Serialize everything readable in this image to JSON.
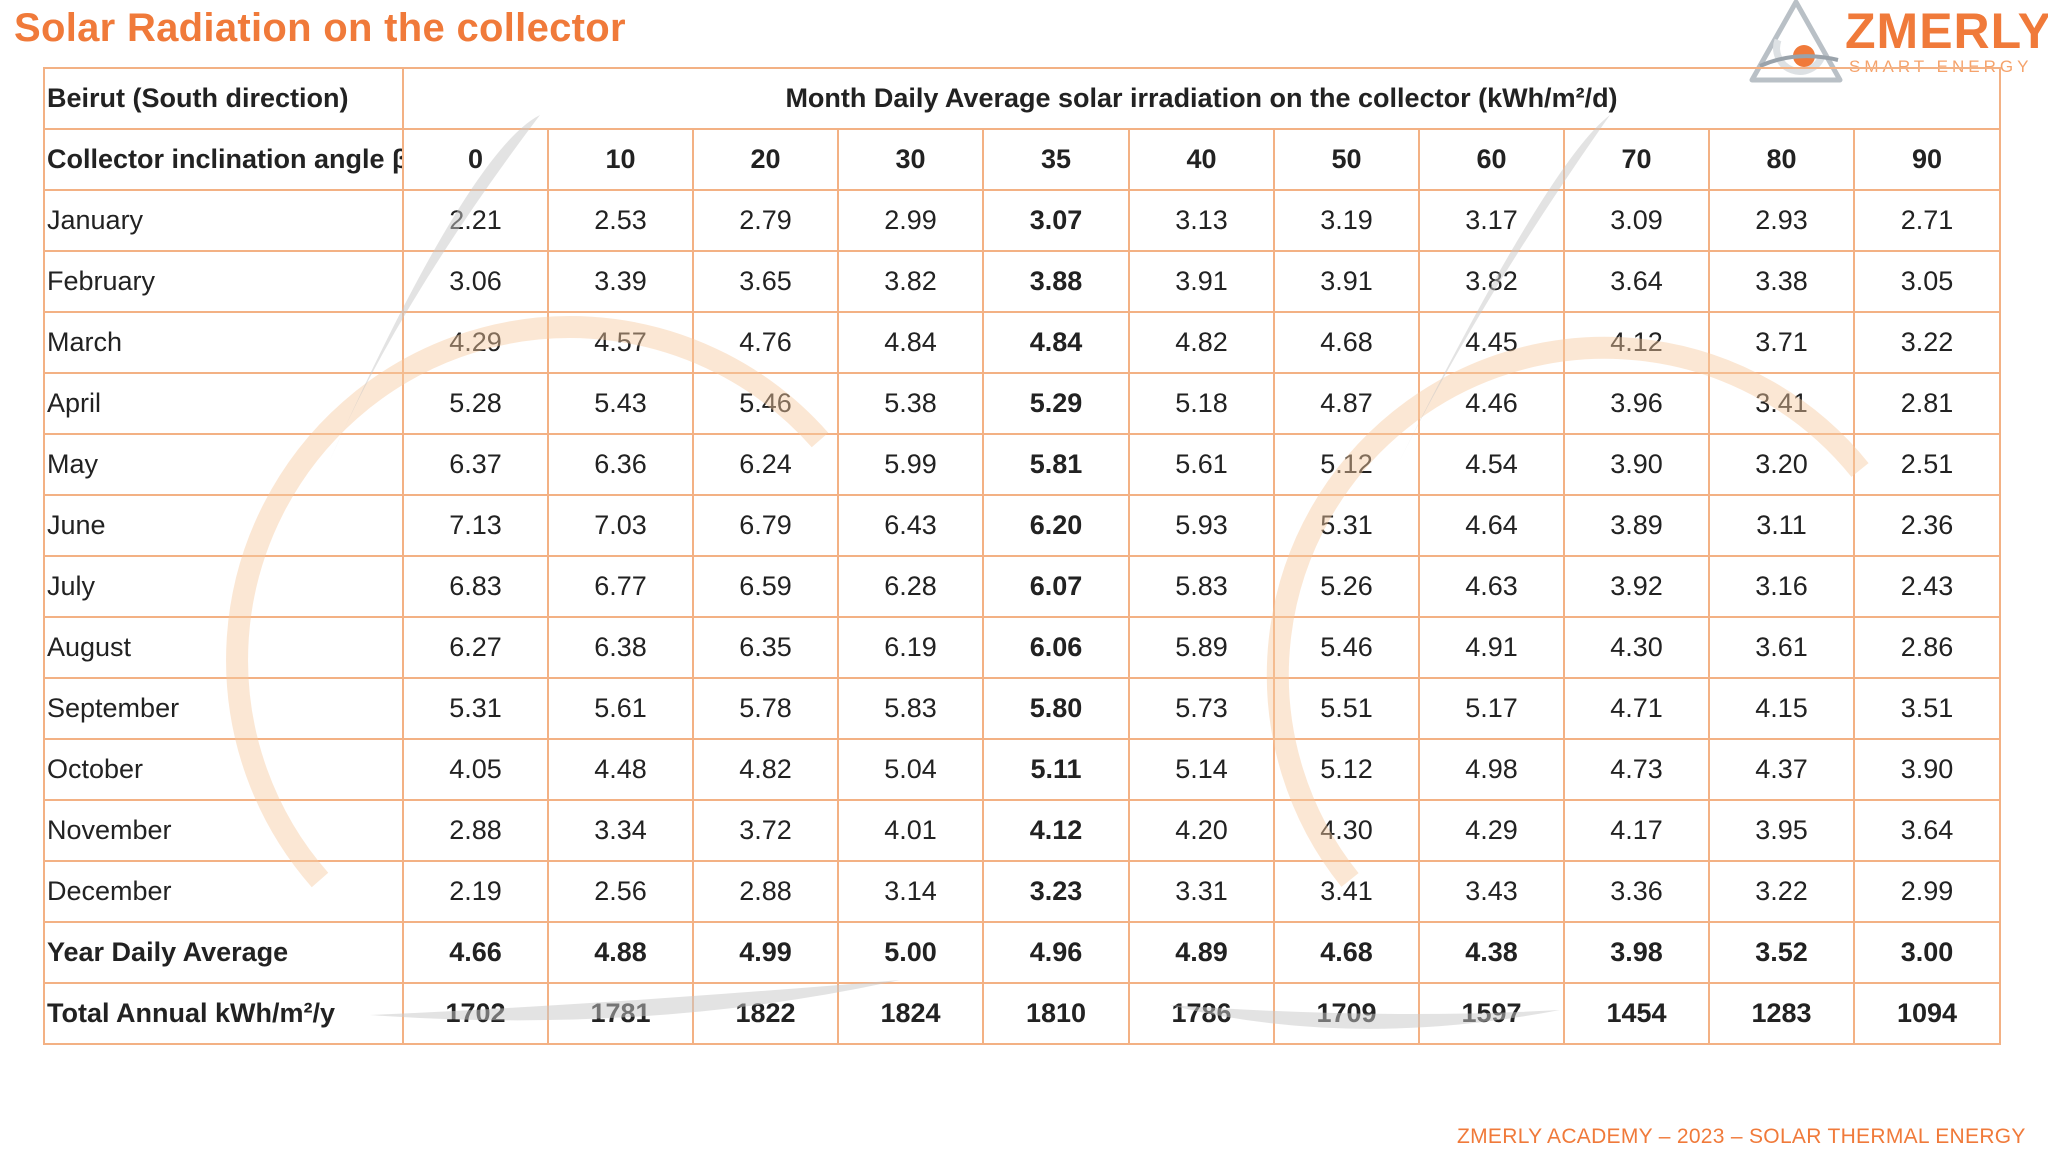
{
  "title": "Solar Radiation on the collector",
  "logo": {
    "name": "ZMERLY",
    "tagline": "SMART ENERGY"
  },
  "table": {
    "location_label": "Beirut (South direction)",
    "group_header": "Month Daily Average solar irradiation on the collector (kWh/m²/d)",
    "angle_label": "Collector inclination angle β",
    "angles": [
      "0",
      "10",
      "20",
      "30",
      "35",
      "40",
      "50",
      "60",
      "70",
      "80",
      "90"
    ],
    "highlight_angle_index": 4,
    "months": [
      {
        "name": "January",
        "values": [
          "2.21",
          "2.53",
          "2.79",
          "2.99",
          "3.07",
          "3.13",
          "3.19",
          "3.17",
          "3.09",
          "2.93",
          "2.71"
        ]
      },
      {
        "name": "February",
        "values": [
          "3.06",
          "3.39",
          "3.65",
          "3.82",
          "3.88",
          "3.91",
          "3.91",
          "3.82",
          "3.64",
          "3.38",
          "3.05"
        ]
      },
      {
        "name": "March",
        "values": [
          "4.29",
          "4.57",
          "4.76",
          "4.84",
          "4.84",
          "4.82",
          "4.68",
          "4.45",
          "4.12",
          "3.71",
          "3.22"
        ]
      },
      {
        "name": "April",
        "values": [
          "5.28",
          "5.43",
          "5.46",
          "5.38",
          "5.29",
          "5.18",
          "4.87",
          "4.46",
          "3.96",
          "3.41",
          "2.81"
        ]
      },
      {
        "name": "May",
        "values": [
          "6.37",
          "6.36",
          "6.24",
          "5.99",
          "5.81",
          "5.61",
          "5.12",
          "4.54",
          "3.90",
          "3.20",
          "2.51"
        ]
      },
      {
        "name": "June",
        "values": [
          "7.13",
          "7.03",
          "6.79",
          "6.43",
          "6.20",
          "5.93",
          "5.31",
          "4.64",
          "3.89",
          "3.11",
          "2.36"
        ]
      },
      {
        "name": "July",
        "values": [
          "6.83",
          "6.77",
          "6.59",
          "6.28",
          "6.07",
          "5.83",
          "5.26",
          "4.63",
          "3.92",
          "3.16",
          "2.43"
        ]
      },
      {
        "name": "August",
        "values": [
          "6.27",
          "6.38",
          "6.35",
          "6.19",
          "6.06",
          "5.89",
          "5.46",
          "4.91",
          "4.30",
          "3.61",
          "2.86"
        ]
      },
      {
        "name": "September",
        "values": [
          "5.31",
          "5.61",
          "5.78",
          "5.83",
          "5.80",
          "5.73",
          "5.51",
          "5.17",
          "4.71",
          "4.15",
          "3.51"
        ]
      },
      {
        "name": "October",
        "values": [
          "4.05",
          "4.48",
          "4.82",
          "5.04",
          "5.11",
          "5.14",
          "5.12",
          "4.98",
          "4.73",
          "4.37",
          "3.90"
        ]
      },
      {
        "name": "November",
        "values": [
          "2.88",
          "3.34",
          "3.72",
          "4.01",
          "4.12",
          "4.20",
          "4.30",
          "4.29",
          "4.17",
          "3.95",
          "3.64"
        ]
      },
      {
        "name": "December",
        "values": [
          "2.19",
          "2.56",
          "2.88",
          "3.14",
          "3.23",
          "3.31",
          "3.41",
          "3.43",
          "3.36",
          "3.22",
          "2.99"
        ]
      }
    ],
    "year_average": {
      "label": "Year Daily Average",
      "values": [
        "4.66",
        "4.88",
        "4.99",
        "5.00",
        "4.96",
        "4.89",
        "4.68",
        "4.38",
        "3.98",
        "3.52",
        "3.00"
      ]
    },
    "total_annual": {
      "label": "Total Annual kWh/m²/y",
      "values": [
        "1702",
        "1781",
        "1822",
        "1824",
        "1810",
        "1786",
        "1709",
        "1597",
        "1454",
        "1283",
        "1094"
      ]
    }
  },
  "footer": "ZMERLY ACADEMY – 2023 – SOLAR THERMAL ENERGY",
  "colors": {
    "accent": "#f07a3a",
    "grid": "#f3b184",
    "watermark_orange": "#f6c9a0",
    "watermark_gray": "#c8c8c8"
  }
}
